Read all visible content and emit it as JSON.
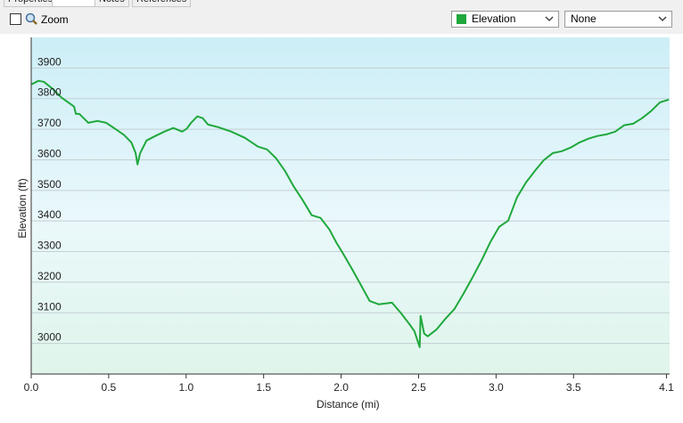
{
  "tabs": [
    "Properties",
    "Notes",
    "References"
  ],
  "toolbar": {
    "zoom": "Zoom",
    "series_select": "Elevation",
    "second_select": "None"
  },
  "chart_data": {
    "type": "line",
    "xlabel": "Distance (mi)",
    "ylabel": "Elevation (ft)",
    "xlim": [
      0,
      4.12
    ],
    "ylim": [
      2900,
      4000
    ],
    "xticks": [
      {
        "value": 0,
        "label": "0.0"
      },
      0.5,
      {
        "value": 1,
        "label": "1.0"
      },
      1.5,
      {
        "value": 2,
        "label": "2.0"
      },
      2.5,
      {
        "value": 3,
        "label": "3.0"
      },
      3.5,
      4.1
    ],
    "yticks": [
      3000,
      3100,
      3200,
      3300,
      3400,
      3500,
      3600,
      3700,
      3800,
      3900
    ],
    "grid": true,
    "x": [
      0,
      0.046,
      0.081,
      0.138,
      0.196,
      0.277,
      0.288,
      0.311,
      0.369,
      0.427,
      0.484,
      0.542,
      0.599,
      0.646,
      0.674,
      0.686,
      0.703,
      0.744,
      0.801,
      0.859,
      0.917,
      0.974,
      1.003,
      1.032,
      1.072,
      1.107,
      1.141,
      1.205,
      1.291,
      1.378,
      1.464,
      1.522,
      1.58,
      1.637,
      1.695,
      1.752,
      1.81,
      1.867,
      1.925,
      1.971,
      2.012,
      2.069,
      2.127,
      2.184,
      2.242,
      2.328,
      2.386,
      2.444,
      2.473,
      2.507,
      2.513,
      2.536,
      2.559,
      2.617,
      2.674,
      2.732,
      2.79,
      2.847,
      2.905,
      2.963,
      3.02,
      3.078,
      3.135,
      3.193,
      3.251,
      3.308,
      3.366,
      3.424,
      3.481,
      3.539,
      3.597,
      3.654,
      3.712,
      3.769,
      3.827,
      3.885,
      3.942,
      4.0,
      4.058,
      4.115
    ],
    "series": [
      {
        "name": "Elevation",
        "color": "#1fa83c",
        "values": [
          3846,
          3858,
          3855,
          3832,
          3803,
          3774,
          3750,
          3750,
          3721,
          3727,
          3721,
          3701,
          3681,
          3657,
          3622,
          3585,
          3622,
          3663,
          3678,
          3692,
          3704,
          3692,
          3701,
          3721,
          3742,
          3736,
          3715,
          3707,
          3692,
          3672,
          3643,
          3634,
          3605,
          3564,
          3512,
          3468,
          3419,
          3410,
          3372,
          3328,
          3294,
          3244,
          3192,
          3139,
          3128,
          3133,
          3099,
          3061,
          3040,
          2988,
          3090,
          3032,
          3023,
          3046,
          3081,
          3113,
          3163,
          3215,
          3270,
          3331,
          3381,
          3401,
          3477,
          3526,
          3564,
          3599,
          3622,
          3628,
          3640,
          3657,
          3669,
          3678,
          3683,
          3692,
          3713,
          3718,
          3736,
          3759,
          3788,
          3797
        ]
      }
    ]
  }
}
